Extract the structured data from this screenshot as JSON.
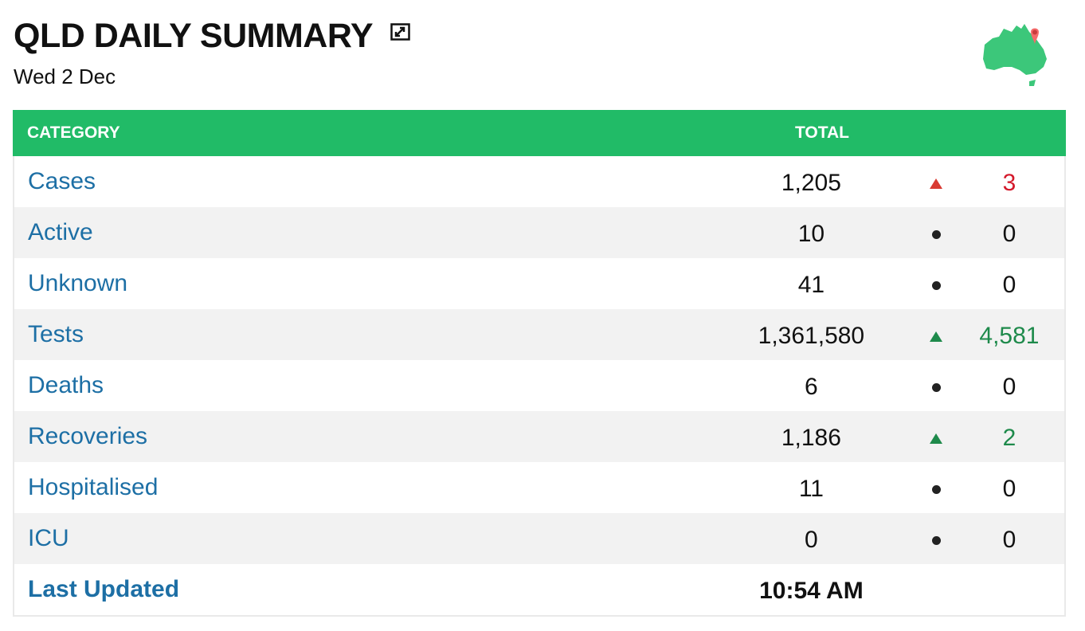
{
  "header": {
    "title": "QLD DAILY SUMMARY",
    "date": "Wed 2 Dec"
  },
  "table": {
    "columns": {
      "category": "CATEGORY",
      "total": "TOTAL"
    },
    "rows": [
      {
        "label": "Cases",
        "total": "1,205",
        "trend": "up-red",
        "delta": "3",
        "delta_color": "#d4192b"
      },
      {
        "label": "Active",
        "total": "10",
        "trend": "none",
        "delta": "0",
        "delta_color": "#111111"
      },
      {
        "label": "Unknown",
        "total": "41",
        "trend": "none",
        "delta": "0",
        "delta_color": "#111111"
      },
      {
        "label": "Tests",
        "total": "1,361,580",
        "trend": "up-green",
        "delta": "4,581",
        "delta_color": "#1e8a4b"
      },
      {
        "label": "Deaths",
        "total": "6",
        "trend": "none",
        "delta": "0",
        "delta_color": "#111111"
      },
      {
        "label": "Recoveries",
        "total": "1,186",
        "trend": "up-green",
        "delta": "2",
        "delta_color": "#1e8a4b"
      },
      {
        "label": "Hospitalised",
        "total": "11",
        "trend": "none",
        "delta": "0",
        "delta_color": "#111111"
      },
      {
        "label": "ICU",
        "total": "0",
        "trend": "none",
        "delta": "0",
        "delta_color": "#111111"
      }
    ],
    "last_updated": {
      "label": "Last Updated",
      "value": "10:54 AM"
    }
  },
  "icons": {
    "expand": "expand-icon",
    "map": "australia-map-pin-icon",
    "up_trend": "triangle-up-icon",
    "no_change": "dot-icon"
  },
  "colors": {
    "header_bg": "#21bb67",
    "link": "#1d6fa5",
    "increase_bad": "#d4192b",
    "increase_good": "#1e8a4b"
  }
}
